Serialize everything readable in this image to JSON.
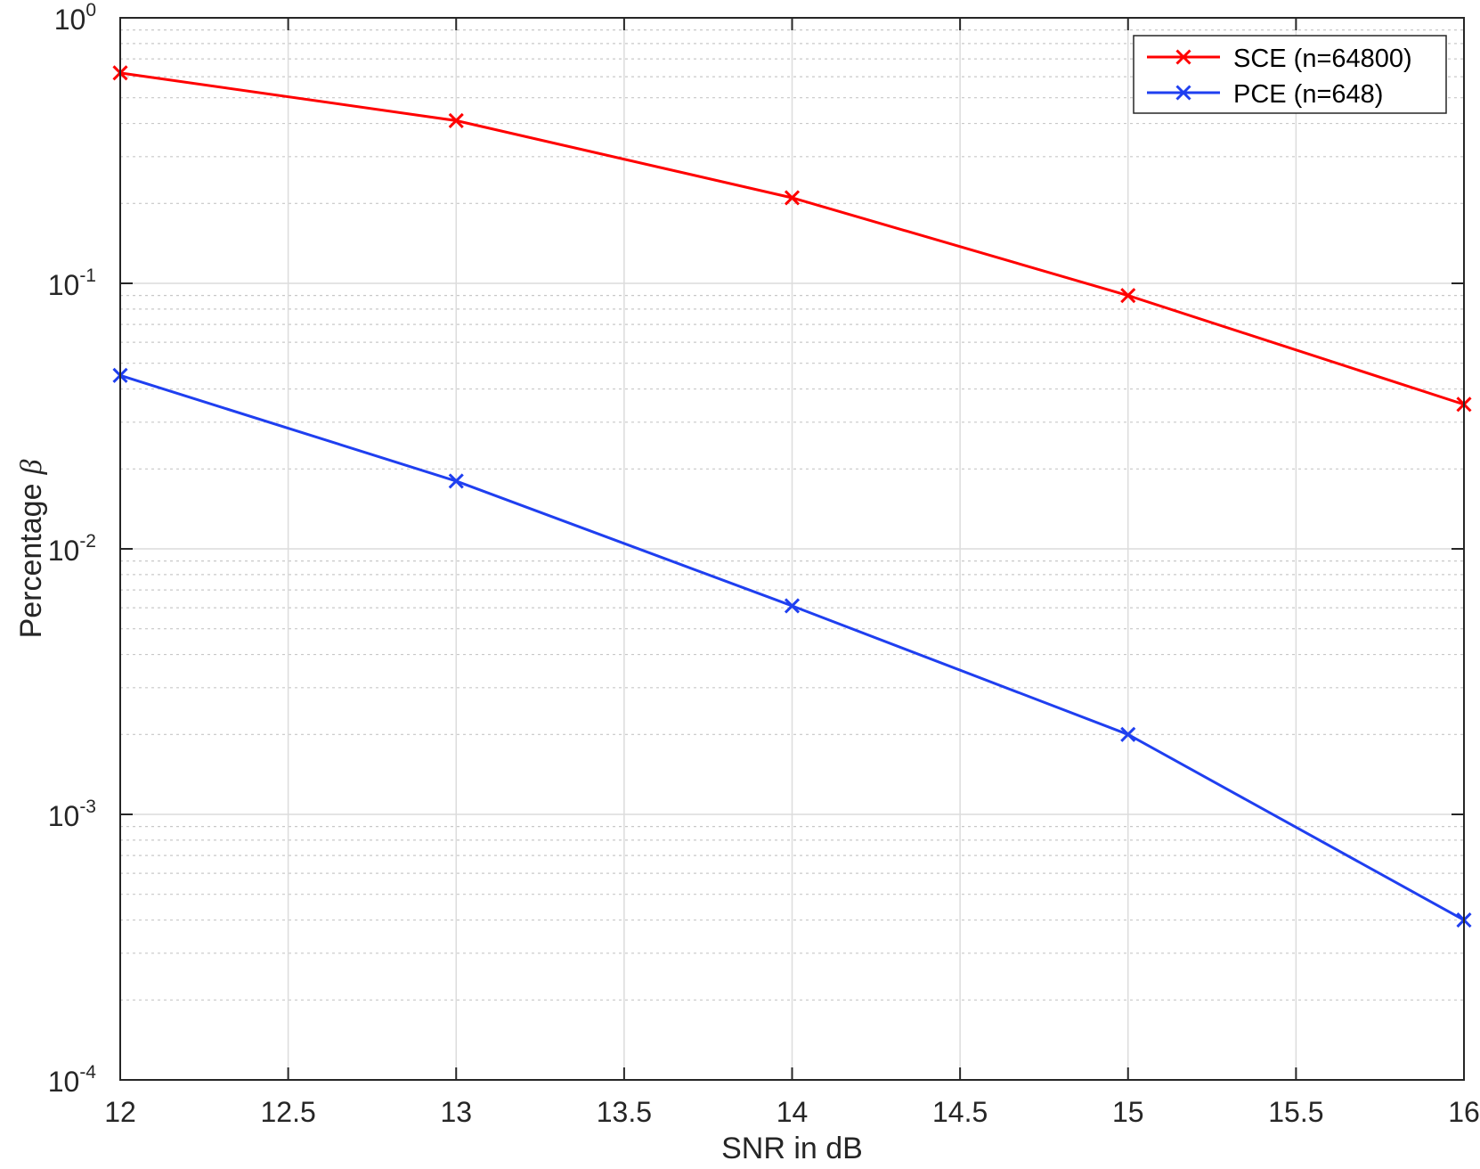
{
  "chart_data": {
    "type": "line",
    "xlabel": "SNR in dB",
    "ylabel": "Percentage",
    "ylabel_symbol": "β",
    "xlim": [
      12,
      16
    ],
    "ylim": [
      0.0001,
      1
    ],
    "yscale": "log",
    "grid": true,
    "minor_grid": true,
    "legend_position": "top-right",
    "x_ticks": [
      "12",
      "12.5",
      "13",
      "13.5",
      "14",
      "14.5",
      "15",
      "15.5",
      "16"
    ],
    "y_ticks": [
      {
        "base": "10",
        "exp": "-4",
        "value": 0.0001
      },
      {
        "base": "10",
        "exp": "-3",
        "value": 0.001
      },
      {
        "base": "10",
        "exp": "-2",
        "value": 0.01
      },
      {
        "base": "10",
        "exp": "-1",
        "value": 0.1
      },
      {
        "base": "10",
        "exp": "0",
        "value": 1
      }
    ],
    "x": [
      12,
      13,
      14,
      15,
      16
    ],
    "series": [
      {
        "name": "SCE (n=64800)",
        "color": "#ff0000",
        "marker": "x",
        "values": [
          0.62,
          0.41,
          0.21,
          0.09,
          0.035
        ]
      },
      {
        "name": "PCE (n=648)",
        "color": "#1f3ff0",
        "marker": "x",
        "values": [
          0.045,
          0.018,
          0.0061,
          0.002,
          0.0004
        ]
      }
    ]
  }
}
